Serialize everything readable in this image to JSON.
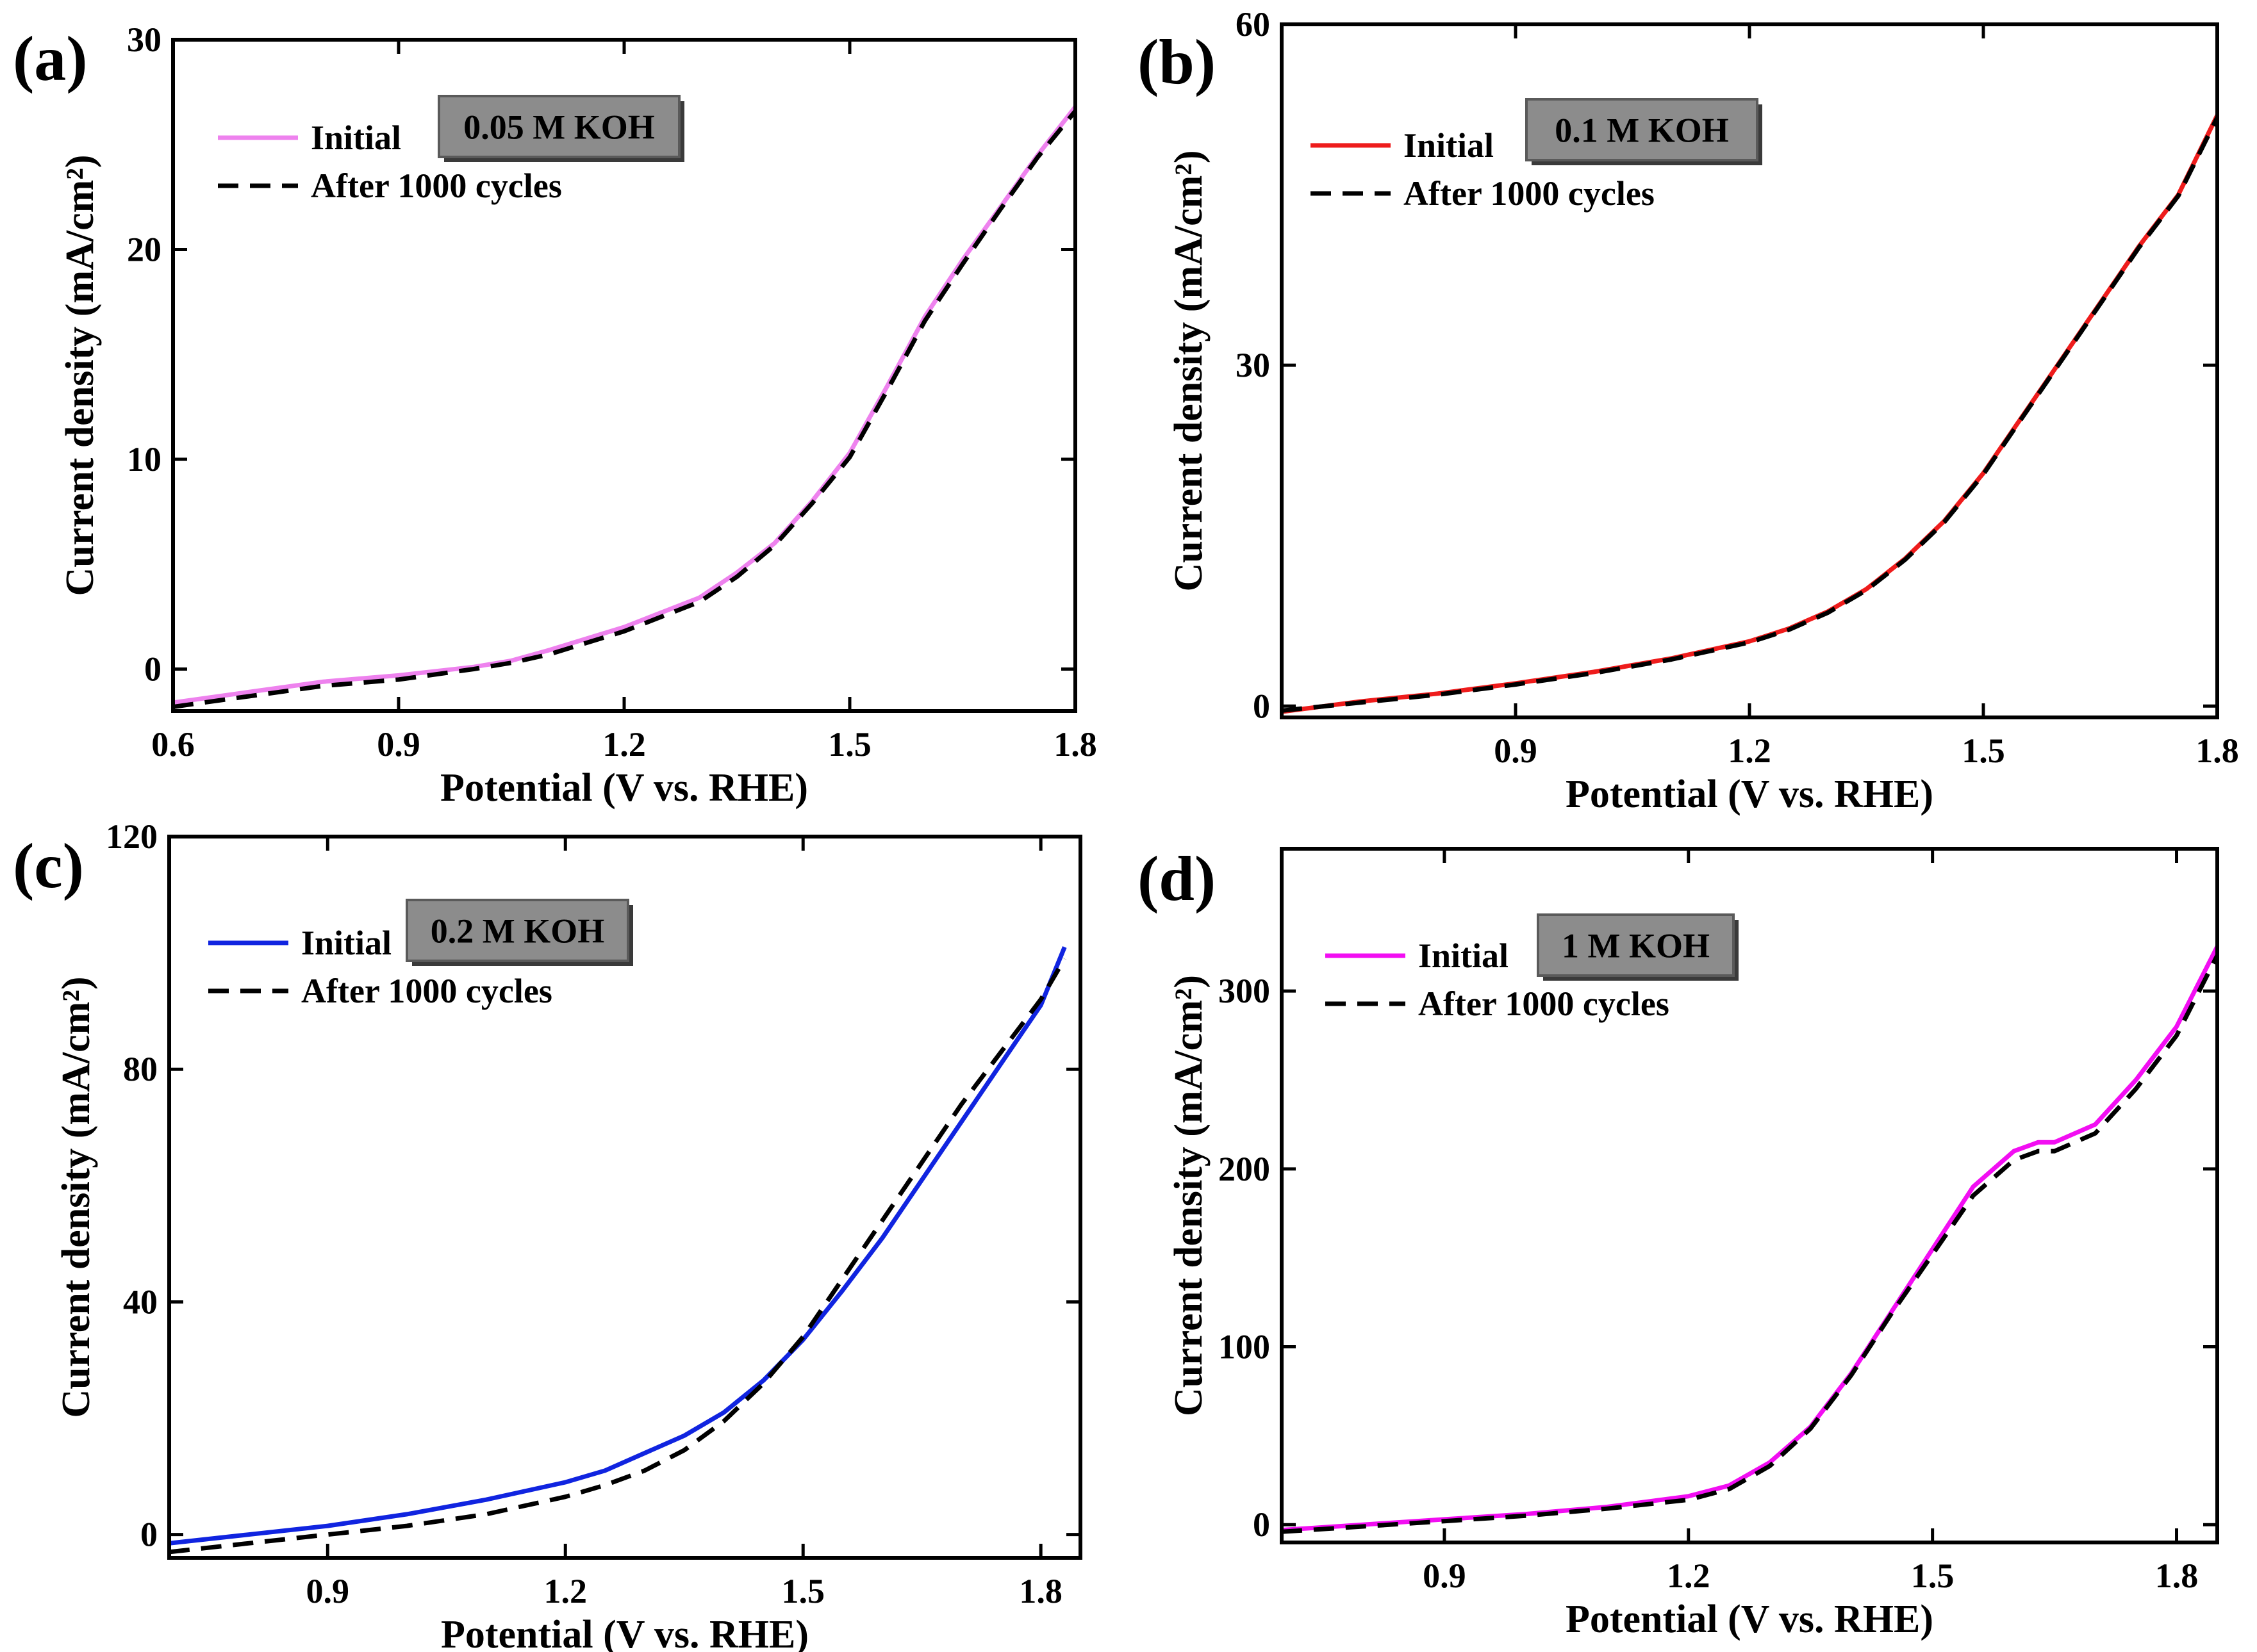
{
  "figure": {
    "panels": 4,
    "layout": "2x2 grid"
  },
  "chart_data": [
    {
      "type": "line",
      "panel_label": "(a)",
      "concentration": "0.05 M KOH",
      "xlabel": "Potential (V vs. RHE)",
      "ylabel": "Current density (mA/cm²)",
      "xlim": [
        0.6,
        1.8
      ],
      "ylim": [
        -2,
        30
      ],
      "xticks": [
        0.6,
        0.9,
        1.2,
        1.5,
        1.8
      ],
      "xtick_labels": [
        "0.6",
        "0.9",
        "1.2",
        "1.5",
        "1.8"
      ],
      "yticks": [
        0,
        10,
        20,
        30
      ],
      "ytick_labels": [
        "0",
        "10",
        "20",
        "30"
      ],
      "legend_position": "top-left",
      "series": [
        {
          "name": "Initial",
          "color": "#ee82ee",
          "dash": "solid",
          "x": [
            0.6,
            0.7,
            0.8,
            0.9,
            1.0,
            1.05,
            1.1,
            1.2,
            1.3,
            1.35,
            1.4,
            1.45,
            1.5,
            1.55,
            1.6,
            1.65,
            1.7,
            1.75,
            1.8
          ],
          "values": [
            -1.6,
            -1.1,
            -0.6,
            -0.3,
            0.1,
            0.4,
            0.9,
            2.0,
            3.4,
            4.6,
            6.0,
            8.0,
            10.3,
            13.5,
            16.8,
            19.5,
            22.0,
            24.5,
            26.8
          ]
        },
        {
          "name": "After 1000 cycles",
          "color": "#000000",
          "dash": "dashed",
          "x": [
            0.6,
            0.7,
            0.8,
            0.9,
            1.0,
            1.05,
            1.1,
            1.2,
            1.3,
            1.35,
            1.4,
            1.45,
            1.5,
            1.55,
            1.6,
            1.65,
            1.7,
            1.75,
            1.8
          ],
          "values": [
            -1.8,
            -1.3,
            -0.8,
            -0.5,
            0.0,
            0.3,
            0.7,
            1.8,
            3.2,
            4.4,
            5.9,
            7.9,
            10.1,
            13.3,
            16.6,
            19.3,
            21.9,
            24.4,
            26.6
          ]
        }
      ]
    },
    {
      "type": "line",
      "panel_label": "(b)",
      "concentration": "0.1 M KOH",
      "xlabel": "Potential (V vs. RHE)",
      "ylabel": "Current density (mA/cm²)",
      "xlim": [
        0.6,
        1.8
      ],
      "ylim": [
        -1,
        60
      ],
      "xticks": [
        0.9,
        1.2,
        1.5,
        1.8
      ],
      "xtick_labels": [
        "0.9",
        "1.2",
        "1.5",
        "1.8"
      ],
      "yticks": [
        0,
        30,
        60
      ],
      "ytick_labels": [
        "0",
        "30",
        "60"
      ],
      "legend_position": "top-left",
      "series": [
        {
          "name": "Initial",
          "color": "#ee1c1c",
          "dash": "solid",
          "x": [
            0.6,
            0.7,
            0.8,
            0.9,
            1.0,
            1.1,
            1.2,
            1.25,
            1.3,
            1.35,
            1.4,
            1.45,
            1.5,
            1.55,
            1.6,
            1.65,
            1.7,
            1.75,
            1.8
          ],
          "values": [
            -0.5,
            0.4,
            1.1,
            2.0,
            3.0,
            4.2,
            5.7,
            6.8,
            8.3,
            10.3,
            13.0,
            16.3,
            20.5,
            25.5,
            30.5,
            35.5,
            40.5,
            45.0,
            52.0
          ]
        },
        {
          "name": "After 1000 cycles",
          "color": "#000000",
          "dash": "dashed",
          "x": [
            0.6,
            0.7,
            0.8,
            0.9,
            1.0,
            1.1,
            1.2,
            1.25,
            1.3,
            1.35,
            1.4,
            1.45,
            1.5,
            1.55,
            1.6,
            1.65,
            1.7,
            1.75,
            1.8
          ],
          "values": [
            -0.4,
            0.3,
            1.0,
            1.9,
            2.9,
            4.1,
            5.6,
            6.7,
            8.2,
            10.2,
            12.9,
            16.2,
            20.4,
            25.4,
            30.4,
            35.4,
            40.4,
            44.9,
            51.8
          ]
        }
      ]
    },
    {
      "type": "line",
      "panel_label": "(c)",
      "concentration": "0.2 M KOH",
      "xlabel": "Potential (V vs. RHE)",
      "ylabel": "Current density (mA/cm²)",
      "xlim": [
        0.7,
        1.85
      ],
      "ylim": [
        -4,
        120
      ],
      "xticks": [
        0.9,
        1.2,
        1.5,
        1.8
      ],
      "xtick_labels": [
        "0.9",
        "1.2",
        "1.5",
        "1.8"
      ],
      "yticks": [
        0,
        40,
        80,
        120
      ],
      "ytick_labels": [
        "0",
        "40",
        "80",
        "120"
      ],
      "legend_position": "top-left",
      "series": [
        {
          "name": "Initial",
          "color": "#1024e0",
          "dash": "solid",
          "x": [
            0.7,
            0.8,
            0.9,
            1.0,
            1.1,
            1.2,
            1.25,
            1.3,
            1.35,
            1.4,
            1.45,
            1.5,
            1.55,
            1.6,
            1.65,
            1.7,
            1.75,
            1.8,
            1.83
          ],
          "values": [
            -1.5,
            0.0,
            1.5,
            3.5,
            6.0,
            9.0,
            11.0,
            14.0,
            17.0,
            21.0,
            26.5,
            33.5,
            42.0,
            51.0,
            61.0,
            71.0,
            81.0,
            91.0,
            101.0
          ]
        },
        {
          "name": "After 1000 cycles",
          "color": "#000000",
          "dash": "dashed",
          "x": [
            0.7,
            0.8,
            0.9,
            1.0,
            1.1,
            1.2,
            1.25,
            1.3,
            1.35,
            1.4,
            1.45,
            1.5,
            1.55,
            1.6,
            1.65,
            1.7,
            1.75,
            1.8,
            1.83
          ],
          "values": [
            -3.0,
            -1.5,
            0.0,
            1.5,
            3.5,
            6.5,
            8.5,
            11.0,
            14.5,
            19.5,
            26.0,
            34.0,
            44.0,
            54.0,
            64.0,
            74.0,
            83.0,
            92.0,
            99.0
          ]
        }
      ]
    },
    {
      "type": "line",
      "panel_label": "(d)",
      "concentration": "1 M KOH",
      "xlabel": "Potential (V vs. RHE)",
      "ylabel": "Current density (mA/cm²)",
      "xlim": [
        0.7,
        1.85
      ],
      "ylim": [
        -10,
        380
      ],
      "xticks": [
        0.9,
        1.2,
        1.5,
        1.8
      ],
      "xtick_labels": [
        "0.9",
        "1.2",
        "1.5",
        "1.8"
      ],
      "yticks": [
        0,
        100,
        200,
        300
      ],
      "ytick_labels": [
        "0",
        "100",
        "200",
        "300"
      ],
      "legend_position": "top-left",
      "series": [
        {
          "name": "Initial",
          "color": "#f20ef2",
          "dash": "solid",
          "x": [
            0.7,
            0.8,
            0.9,
            1.0,
            1.1,
            1.2,
            1.25,
            1.3,
            1.35,
            1.4,
            1.45,
            1.5,
            1.55,
            1.6,
            1.63,
            1.65,
            1.7,
            1.75,
            1.8,
            1.85
          ],
          "values": [
            -3,
            0,
            3,
            6,
            10,
            16,
            22,
            35,
            55,
            85,
            120,
            155,
            190,
            210,
            215,
            215,
            225,
            250,
            280,
            325
          ]
        },
        {
          "name": "After 1000 cycles",
          "color": "#000000",
          "dash": "dashed",
          "x": [
            0.7,
            0.8,
            0.9,
            1.0,
            1.1,
            1.2,
            1.25,
            1.3,
            1.35,
            1.4,
            1.45,
            1.5,
            1.55,
            1.6,
            1.63,
            1.65,
            1.7,
            1.75,
            1.8,
            1.85
          ],
          "values": [
            -4,
            -1,
            2,
            5,
            9,
            14,
            20,
            33,
            54,
            84,
            119,
            152,
            185,
            205,
            210,
            210,
            220,
            245,
            275,
            320
          ]
        }
      ]
    }
  ]
}
